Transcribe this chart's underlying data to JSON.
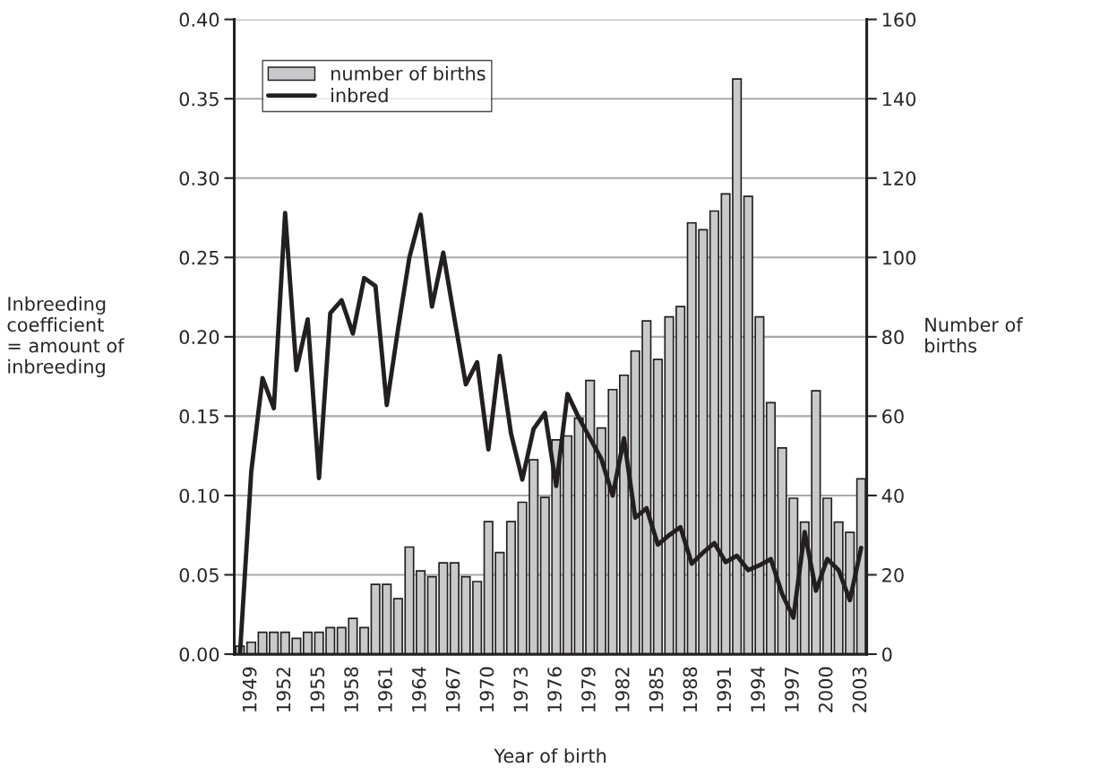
{
  "chart_data": {
    "type": "bar",
    "xlabel": "Year of birth",
    "ylabel": "Inbreeding\ncoefficient\n= amount of\ninbreeding",
    "y2label": "Number of\nbirths",
    "categories": [
      null,
      "1949",
      null,
      null,
      "1952",
      null,
      null,
      "1955",
      null,
      null,
      "1958",
      null,
      null,
      "1961",
      null,
      null,
      "1964",
      null,
      null,
      "1967",
      null,
      null,
      "1970",
      null,
      null,
      "1973",
      null,
      null,
      "1976",
      null,
      null,
      "1979",
      null,
      null,
      "1982",
      null,
      null,
      "1985",
      null,
      null,
      "1988",
      null,
      null,
      "1991",
      null,
      null,
      "1994",
      null,
      null,
      "1997",
      null,
      null,
      "2000",
      null,
      null,
      "2003"
    ],
    "series": [
      {
        "name": "number of births",
        "axis": "y2",
        "color": "#c8c9cb",
        "values": [
          2,
          3,
          5.5,
          5.5,
          5.5,
          4,
          5.5,
          5.5,
          6.7,
          6.7,
          9,
          6.7,
          17.6,
          17.6,
          14,
          27,
          21,
          19.5,
          23,
          23,
          19.5,
          18.3,
          33.4,
          25.6,
          33.4,
          38.3,
          49,
          39.5,
          54,
          55,
          59.5,
          69,
          57,
          66.7,
          70.3,
          76.4,
          84,
          74.3,
          85,
          87.6,
          108.7,
          107,
          111.7,
          116,
          145,
          115.4,
          85,
          63.4,
          52,
          39.3,
          33.3,
          66.4,
          39.3,
          33.3,
          30.7,
          44.2
        ]
      },
      {
        "name": "inbred",
        "type": "line",
        "color": "#231f20",
        "values": [
          0,
          0.115,
          0.174,
          0.155,
          0.278,
          0.179,
          0.211,
          0.111,
          0.215,
          0.223,
          0.202,
          0.237,
          0.232,
          0.157,
          0.205,
          0.25,
          0.277,
          0.219,
          0.253,
          0.211,
          0.17,
          0.184,
          0.129,
          0.188,
          0.139,
          0.11,
          0.142,
          0.152,
          0.106,
          0.164,
          0.149,
          0.136,
          0.123,
          0.1,
          0.136,
          0.086,
          0.092,
          0.069,
          0.075,
          0.08,
          0.057,
          0.064,
          0.07,
          0.058,
          0.062,
          0.053,
          0.056,
          0.06,
          0.038,
          0.023,
          0.077,
          0.04,
          0.06,
          0.053,
          0.034,
          0.067
        ]
      }
    ],
    "ylim": [
      0,
      0.4
    ],
    "yticks": [
      {
        "value": 0,
        "label": "0.00"
      },
      {
        "value": 0.05,
        "label": "0.05"
      },
      {
        "value": 0.1,
        "label": "0.10"
      },
      {
        "value": 0.15,
        "label": "0.15"
      },
      {
        "value": 0.2,
        "label": "0.20"
      },
      {
        "value": 0.25,
        "label": "0.25"
      },
      {
        "value": 0.3,
        "label": "0.30"
      },
      {
        "value": 0.35,
        "label": "0.35"
      },
      {
        "value": 0.4,
        "label": "0.40"
      }
    ],
    "y2lim": [
      0,
      160
    ],
    "y2ticks": [
      0,
      20,
      40,
      60,
      80,
      100,
      120,
      140,
      160
    ],
    "grid": "y",
    "legend": "top left",
    "marker": "none",
    "line_style": "solid"
  }
}
